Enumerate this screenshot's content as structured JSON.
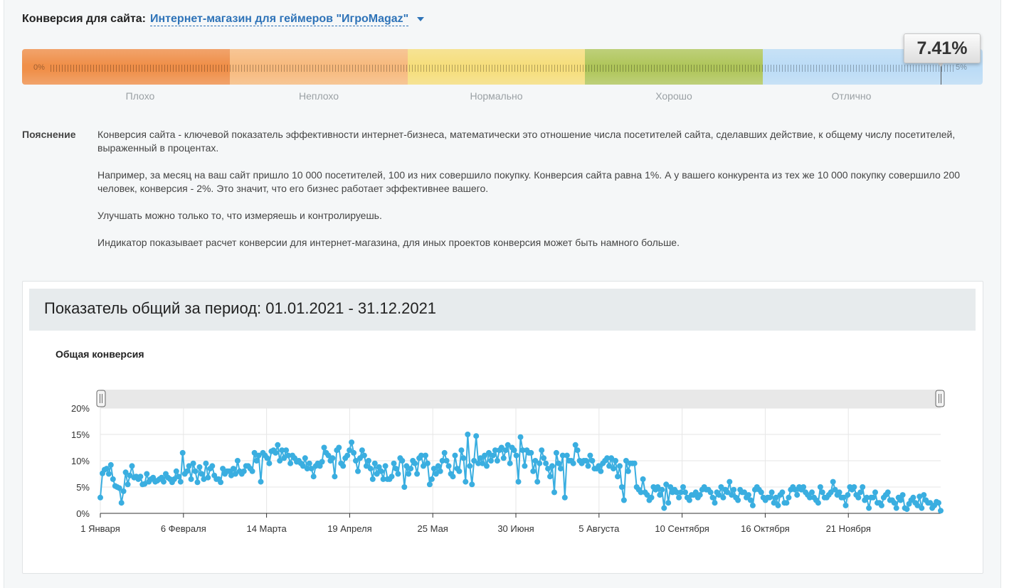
{
  "header": {
    "label": "Конверсия для сайта:",
    "site_name": "Интернет-магазин для геймеров \"ИгроMagaz\""
  },
  "meter": {
    "value_text": "7.41%",
    "value": 7.41,
    "min_label": "0%",
    "max_label": "5%",
    "segments": [
      {
        "label": "Плохо",
        "color": "#f08f49"
      },
      {
        "label": "Неплохо",
        "color": "#f7ba7e"
      },
      {
        "label": "Нормально",
        "color": "#f6de7c"
      },
      {
        "label": "Хорошо",
        "color": "#b0c65b"
      },
      {
        "label": "Отлично",
        "color": "#bcdcf6"
      }
    ]
  },
  "explanation": {
    "label": "Пояснение",
    "paragraphs": [
      "Конверсия сайта - ключевой показатель эффективности интернет-бизнеса, математически это отношение числа посетителей сайта, сделавших действие, к общему числу посетителей, выраженный в процентах.",
      "Например, за месяц на ваш сайт пришло 10 000 посетителей, 100 из них совершило покупку. Конверсия сайта равна 1%. А у вашего конкурента из тех же 10 000 покупку совершило 200 человек, конверсия - 2%. Это значит, что его бизнес работает эффективнее вашего.",
      "Улучшать можно только то, что измеряешь и контролируешь.",
      "Индикатор показывает расчет конверсии для интернет-магазина, для иных проектов конверсия может быть намного больше."
    ]
  },
  "period": {
    "title": "Показатель общий за период: 01.01.2021 - 31.12.2021"
  },
  "chart_data": {
    "type": "line",
    "title": "Общая конверсия",
    "xlabel": "",
    "ylabel": "",
    "ylim": [
      0,
      20
    ],
    "yticks": [
      "0%",
      "5%",
      "10%",
      "15%",
      "20%"
    ],
    "xlim": [
      1,
      365
    ],
    "xticks": [
      {
        "day": 1,
        "label": "1 Января"
      },
      {
        "day": 37,
        "label": "6 Февраля"
      },
      {
        "day": 73,
        "label": "14 Марта"
      },
      {
        "day": 109,
        "label": "19 Апреля"
      },
      {
        "day": 145,
        "label": "25 Мая"
      },
      {
        "day": 181,
        "label": "30 Июня"
      },
      {
        "day": 217,
        "label": "5 Августа"
      },
      {
        "day": 253,
        "label": "10 Сентября"
      },
      {
        "day": 289,
        "label": "16 Октября"
      },
      {
        "day": 325,
        "label": "21 Ноября"
      }
    ],
    "grid": true,
    "line_color": "#3aaee0",
    "values": [
      3.0,
      7.6,
      8.3,
      8.5,
      7.5,
      9.2,
      6.5,
      5.2,
      5.0,
      4.8,
      2.0,
      4.2,
      7.8,
      5.5,
      7.2,
      9.0,
      6.8,
      7.0,
      6.5,
      7.0,
      5.5,
      5.6,
      7.5,
      6.0,
      6.5,
      6.8,
      6.0,
      6.2,
      6.5,
      6.8,
      6.0,
      7.5,
      6.8,
      6.5,
      5.9,
      6.5,
      8.0,
      7.0,
      6.0,
      11.5,
      7.5,
      8.0,
      9.0,
      6.5,
      9.5,
      8.0,
      5.9,
      8.8,
      7.5,
      6.5,
      9.5,
      6.8,
      8.5,
      9.0,
      7.2,
      6.5,
      6.5,
      5.9,
      8.5,
      7.5,
      8.0,
      8.0,
      7.2,
      8.5,
      7.5,
      10.0,
      8.0,
      7.5,
      8.0,
      9.0,
      9.0,
      8.5,
      8.0,
      11.5,
      10.0,
      11.0,
      6.0,
      11.5,
      11.0,
      10.5,
      9.5,
      11.8,
      12.0,
      11.5,
      13.0,
      10.0,
      12.0,
      10.5,
      12.0,
      11.0,
      9.5,
      11.0,
      10.5,
      9.8,
      10.0,
      9.5,
      9.0,
      10.5,
      8.5,
      9.5,
      8.5,
      7.0,
      9.0,
      9.5,
      9.0,
      9.8,
      12.5,
      11.5,
      11.0,
      10.0,
      10.5,
      7.0,
      12.0,
      12.5,
      9.5,
      9.0,
      10.5,
      11.0,
      12.0,
      13.5,
      11.5,
      10.0,
      8.0,
      10.5,
      12.0,
      11.0,
      9.0,
      10.0,
      8.5,
      6.5,
      9.5,
      7.5,
      8.8,
      8.0,
      6.5,
      9.0,
      6.5,
      6.5,
      7.0,
      9.5,
      8.5,
      7.5,
      10.5,
      10.0,
      5.0,
      9.0,
      7.5,
      8.5,
      10.0,
      9.5,
      7.5,
      10.5,
      11.0,
      9.0,
      11.0,
      9.5,
      5.5,
      6.5,
      8.5,
      7.5,
      9.0,
      8.0,
      10.0,
      11.5,
      10.0,
      9.0,
      7.5,
      7.0,
      11.0,
      8.5,
      8.0,
      12.0,
      10.5,
      6.0,
      15.0,
      9.0,
      5.5,
      10.0,
      14.7,
      9.5,
      10.5,
      9.5,
      11.0,
      9.0,
      11.5,
      10.0,
      11.0,
      12.0,
      10.0,
      12.0,
      12.5,
      10.5,
      12.0,
      13.0,
      9.5,
      12.5,
      12.0,
      11.0,
      6.0,
      14.5,
      12.0,
      9.0,
      12.0,
      11.5,
      11.5,
      8.0,
      10.0,
      6.0,
      9.5,
      12.0,
      10.5,
      9.5,
      8.5,
      7.0,
      9.0,
      4.0,
      11.5,
      9.5,
      8.5,
      11.0,
      3.0,
      11.0,
      10.0,
      10.0,
      9.5,
      13.0,
      12.0,
      10.0,
      9.5,
      10.0,
      10.0,
      9.0,
      11.0,
      10.0,
      8.5,
      8.5,
      9.0,
      8.0,
      9.5,
      10.0,
      10.5,
      9.0,
      10.5,
      8.5,
      10.0,
      7.0,
      9.0,
      5.0,
      2.5,
      10.0,
      8.0,
      9.5,
      9.5,
      9.5,
      5.0,
      4.5,
      4.0,
      6.5,
      4.0,
      3.5,
      2.5,
      3.0,
      5.0,
      4.5,
      5.0,
      3.5,
      4.5,
      1.0,
      5.5,
      2.0,
      5.0,
      4.0,
      4.5,
      4.0,
      3.0,
      4.0,
      5.0,
      4.0,
      3.0,
      2.5,
      3.5,
      3.5,
      4.0,
      3.0,
      3.5,
      4.5,
      5.0,
      4.5,
      4.5,
      4.0,
      3.0,
      2.0,
      4.0,
      3.5,
      5.0,
      3.0,
      4.5,
      4.0,
      6.0,
      3.5,
      4.5,
      3.0,
      2.5,
      4.5,
      4.0,
      4.0,
      3.0,
      3.5,
      2.5,
      1.5,
      4.5,
      5.0,
      4.5,
      4.0,
      3.0,
      2.5,
      3.0,
      3.0,
      4.0,
      2.0,
      3.0,
      1.5,
      3.5,
      4.0,
      2.0,
      2.0,
      3.0,
      4.5,
      5.0,
      4.5,
      3.5,
      5.0,
      4.5,
      5.0,
      4.0,
      3.5,
      3.0,
      4.0,
      3.0,
      2.5,
      2.0,
      5.0,
      4.0,
      3.0,
      3.0,
      3.5,
      4.0,
      6.0,
      4.5,
      3.5,
      4.0,
      3.0,
      3.0,
      1.5,
      3.5,
      5.0,
      4.5,
      5.0,
      3.5,
      3.0,
      4.0,
      5.0,
      2.5,
      3.0,
      1.0,
      3.0,
      3.0,
      4.0,
      2.0,
      2.0,
      1.5,
      3.0,
      3.5,
      4.0,
      2.5,
      2.5,
      2.0,
      1.0,
      3.0,
      2.5,
      3.5,
      1.0,
      0.8,
      1.8,
      2.5,
      3.0,
      2.0,
      1.5,
      3.2,
      1.0,
      3.5,
      2.5,
      2.0,
      2.0,
      1.0,
      1.5,
      2.2,
      2.0,
      0.5
    ]
  }
}
